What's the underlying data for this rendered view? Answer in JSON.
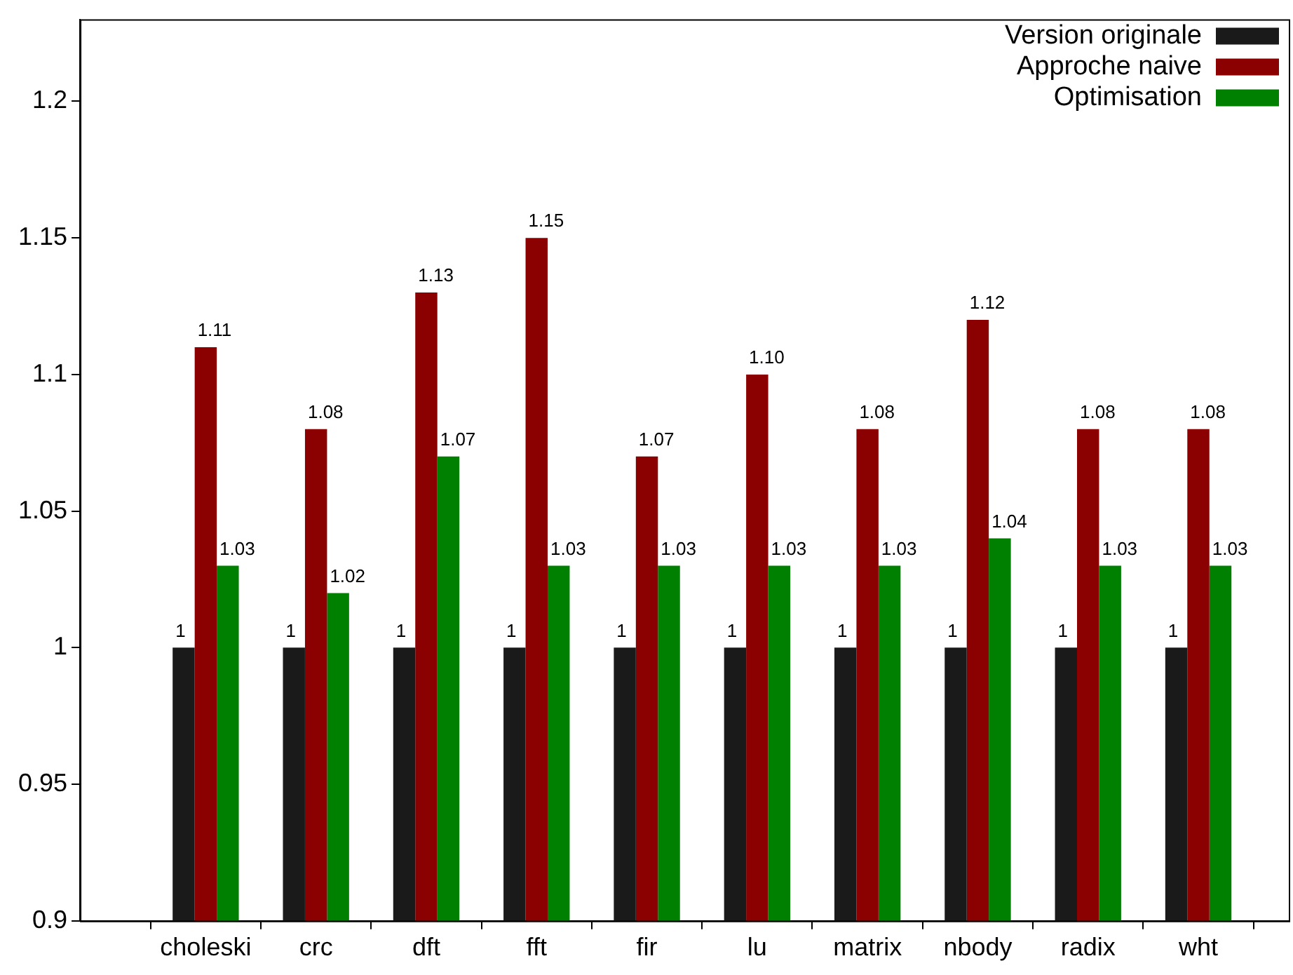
{
  "chart_data": {
    "type": "bar",
    "categories": [
      "choleski",
      "crc",
      "dft",
      "fft",
      "fir",
      "lu",
      "matrix",
      "nbody",
      "radix",
      "wht"
    ],
    "series": [
      {
        "name": "Version originale",
        "color": "#1a1a1a",
        "values": [
          1,
          1,
          1,
          1,
          1,
          1,
          1,
          1,
          1,
          1
        ],
        "value_labels": [
          "1",
          "1",
          "1",
          "1",
          "1",
          "1",
          "1",
          "1",
          "1",
          "1"
        ]
      },
      {
        "name": "Approche naive",
        "color": "#8b0000",
        "values": [
          1.11,
          1.08,
          1.13,
          1.15,
          1.07,
          1.1,
          1.08,
          1.12,
          1.08,
          1.08
        ],
        "value_labels": [
          "1.11",
          "1.08",
          "1.13",
          "1.15",
          "1.07",
          "1.10",
          "1.08",
          "1.12",
          "1.08",
          "1.08"
        ]
      },
      {
        "name": "Optimisation",
        "color": "#008000",
        "values": [
          1.03,
          1.02,
          1.07,
          1.03,
          1.03,
          1.03,
          1.03,
          1.04,
          1.03,
          1.03
        ],
        "value_labels": [
          "1.03",
          "1.02",
          "1.07",
          "1.03",
          "1.03",
          "1.03",
          "1.03",
          "1.04",
          "1.03",
          "1.03"
        ]
      }
    ],
    "ylim": [
      0.9,
      1.23
    ],
    "yticks": [
      0.9,
      0.95,
      1,
      1.05,
      1.1,
      1.15,
      1.2
    ],
    "grid": false,
    "legend": "top right"
  }
}
